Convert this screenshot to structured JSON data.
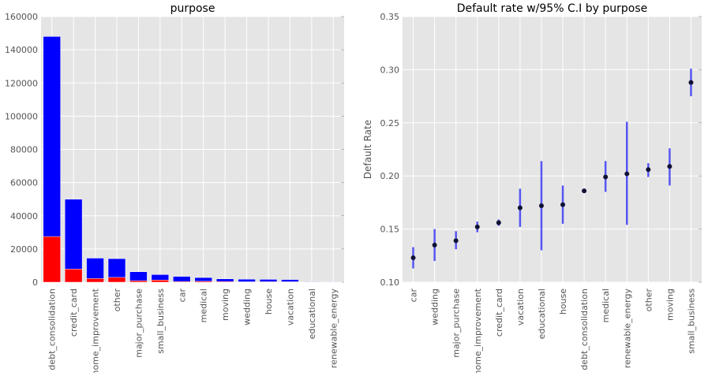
{
  "colors": {
    "total_bar": "#0000ff",
    "default_bar": "#ff0000",
    "ci_line": "#3b3bf5",
    "point": "#111133",
    "panel_bg": "#e5e5e5",
    "grid": "#ffffff",
    "tick_text": "#555555",
    "title_text": "#000000"
  },
  "chart_data": [
    {
      "type": "bar",
      "title": "purpose",
      "xlabel": "",
      "ylabel": "",
      "ylim": [
        0,
        160000
      ],
      "yticks": [
        0,
        20000,
        40000,
        60000,
        80000,
        100000,
        120000,
        140000,
        160000
      ],
      "ytick_labels": [
        "0",
        "20000",
        "40000",
        "60000",
        "80000",
        "100000",
        "120000",
        "140000",
        "160000"
      ],
      "grid": true,
      "stacked_overlay": true,
      "categories": [
        "debt_consolidation",
        "credit_card",
        "home_improvement",
        "other",
        "major_purchase",
        "small_business",
        "car",
        "medical",
        "moving",
        "wedding",
        "house",
        "vacation",
        "educational",
        "renewable_energy"
      ],
      "series": [
        {
          "color": "#0000ff",
          "values": [
            148000,
            50000,
            14500,
            14200,
            6300,
            4600,
            3500,
            2800,
            2000,
            1800,
            1700,
            1600,
            400,
            300
          ]
        },
        {
          "color": "#ff0000",
          "values": [
            27500,
            7900,
            2200,
            2900,
            900,
            1300,
            430,
            560,
            420,
            240,
            290,
            270,
            70,
            60
          ]
        }
      ]
    },
    {
      "type": "scatter",
      "title": "Default rate w/95% C.I by purpose",
      "xlabel": "",
      "ylabel": "Default Rate",
      "ylim": [
        0.1,
        0.35
      ],
      "yticks": [
        0.1,
        0.15,
        0.2,
        0.25,
        0.3,
        0.35
      ],
      "ytick_labels": [
        "0.10",
        "0.15",
        "0.20",
        "0.25",
        "0.30",
        "0.35"
      ],
      "grid": true,
      "categories": [
        "car",
        "wedding",
        "major_purchase",
        "home_improvement",
        "credit_card",
        "vacation",
        "educational",
        "house",
        "debt_consolidation",
        "medical",
        "renewable_energy",
        "other",
        "moving",
        "small_business"
      ],
      "values": [
        0.123,
        0.135,
        0.139,
        0.152,
        0.156,
        0.17,
        0.172,
        0.173,
        0.186,
        0.199,
        0.202,
        0.206,
        0.209,
        0.288
      ],
      "ci_low": [
        0.113,
        0.12,
        0.131,
        0.147,
        0.153,
        0.152,
        0.13,
        0.155,
        0.184,
        0.185,
        0.154,
        0.199,
        0.191,
        0.275
      ],
      "ci_high": [
        0.133,
        0.15,
        0.148,
        0.157,
        0.159,
        0.188,
        0.214,
        0.191,
        0.188,
        0.214,
        0.251,
        0.212,
        0.226,
        0.301
      ]
    }
  ]
}
